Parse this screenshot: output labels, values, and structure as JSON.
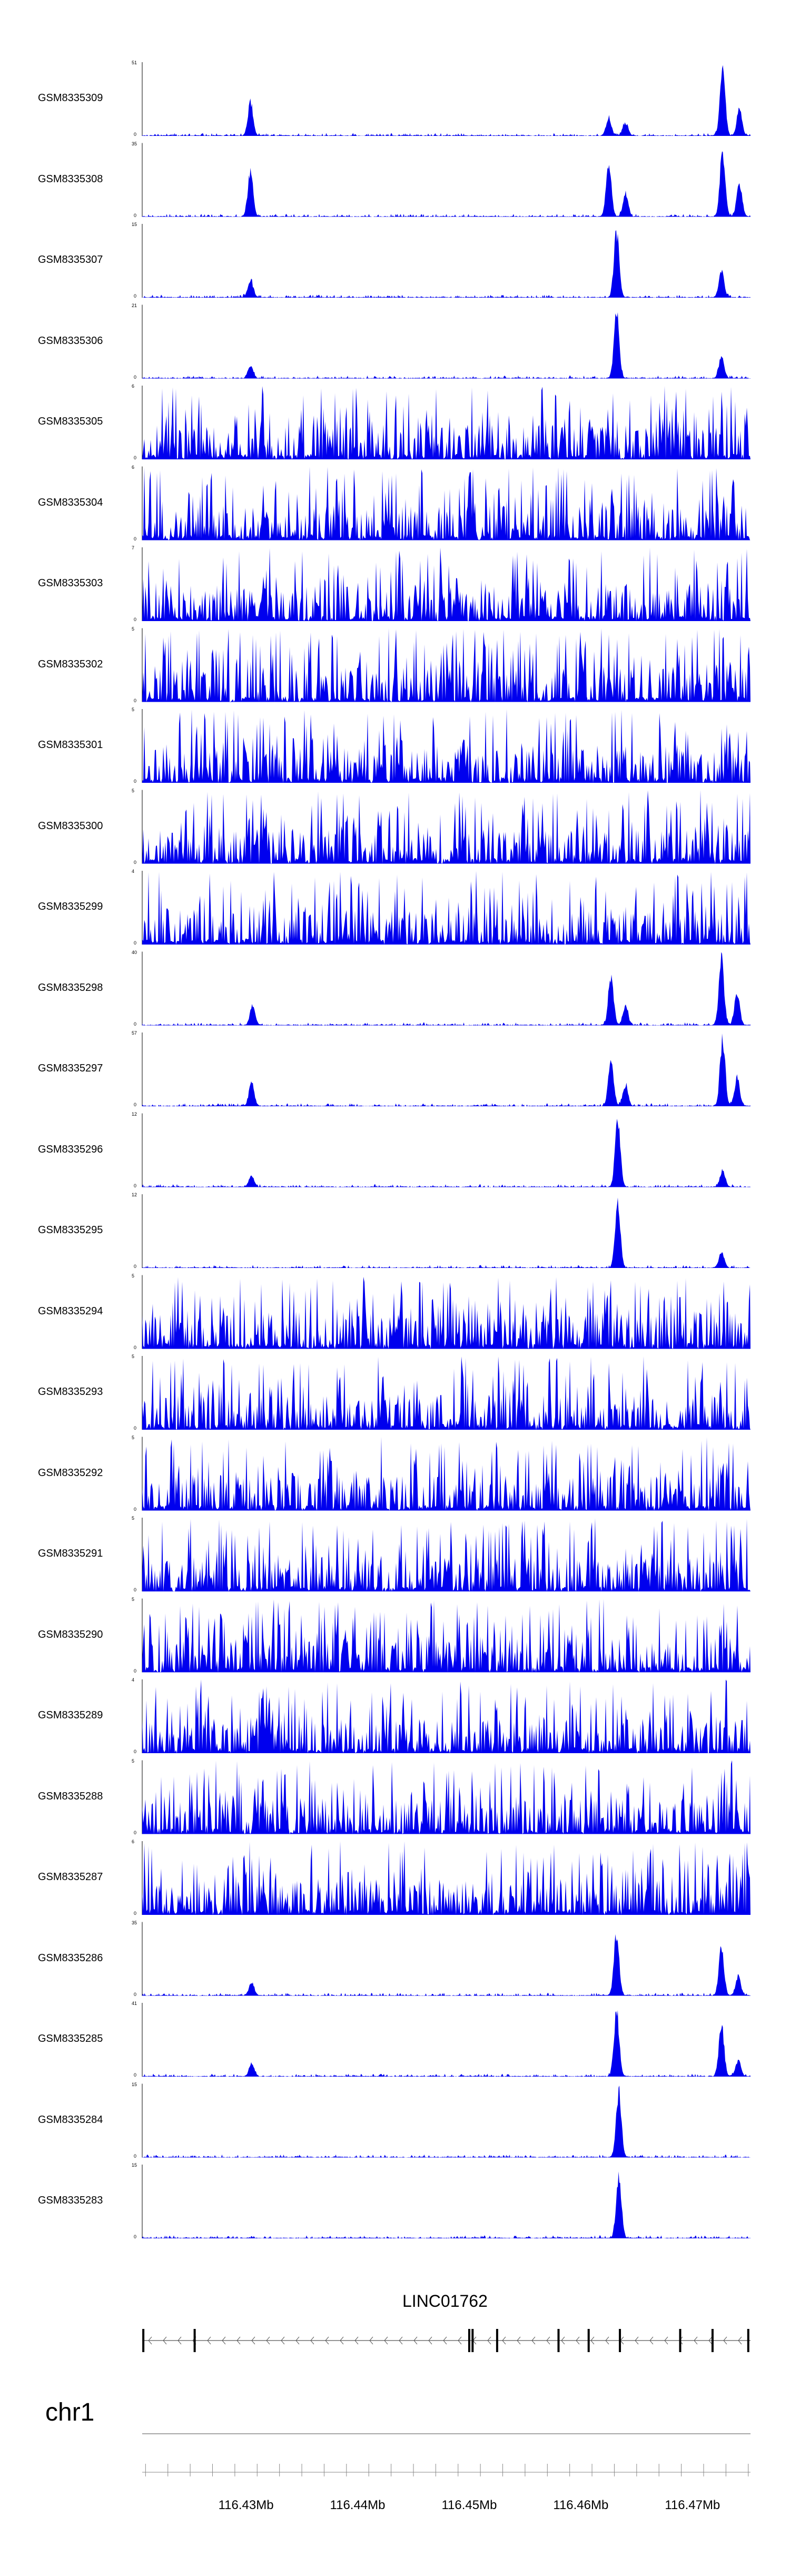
{
  "chart_data": {
    "type": "area",
    "series_color": "#0000ee",
    "x_unit": "Mb",
    "xlim": [
      116.4207,
      116.4752
    ],
    "tracks": [
      {
        "name": "GSM8335309",
        "ymax": 51,
        "ymin": 0,
        "profile": "peaky",
        "peaks": [
          [
            116.4304,
            26
          ],
          [
            116.4625,
            14
          ],
          [
            116.464,
            10
          ],
          [
            116.4727,
            51
          ],
          [
            116.4742,
            20
          ]
        ]
      },
      {
        "name": "GSM8335308",
        "ymax": 35,
        "ymin": 0,
        "profile": "peaky",
        "peaks": [
          [
            116.4304,
            24
          ],
          [
            116.4625,
            28
          ],
          [
            116.464,
            12
          ],
          [
            116.4727,
            35
          ],
          [
            116.4742,
            18
          ]
        ]
      },
      {
        "name": "GSM8335307",
        "ymax": 15,
        "ymin": 0,
        "profile": "peaky",
        "peaks": [
          [
            116.4304,
            4
          ],
          [
            116.4632,
            15
          ],
          [
            116.4726,
            6
          ]
        ]
      },
      {
        "name": "GSM8335306",
        "ymax": 21,
        "ymin": 0,
        "profile": "peaky",
        "peaks": [
          [
            116.4304,
            4
          ],
          [
            116.4632,
            21
          ],
          [
            116.4726,
            7
          ]
        ]
      },
      {
        "name": "GSM8335305",
        "ymax": 6,
        "ymin": 0,
        "profile": "noisy"
      },
      {
        "name": "GSM8335304",
        "ymax": 6,
        "ymin": 0,
        "profile": "noisy"
      },
      {
        "name": "GSM8335303",
        "ymax": 7,
        "ymin": 0,
        "profile": "noisy"
      },
      {
        "name": "GSM8335302",
        "ymax": 5,
        "ymin": 0,
        "profile": "noisy"
      },
      {
        "name": "GSM8335301",
        "ymax": 5,
        "ymin": 0,
        "profile": "noisy"
      },
      {
        "name": "GSM8335300",
        "ymax": 5,
        "ymin": 0,
        "profile": "noisy"
      },
      {
        "name": "GSM8335299",
        "ymax": 4,
        "ymin": 0,
        "profile": "noisy"
      },
      {
        "name": "GSM8335298",
        "ymax": 40,
        "ymin": 0,
        "profile": "peaky",
        "peaks": [
          [
            116.4306,
            12
          ],
          [
            116.4627,
            30
          ],
          [
            116.464,
            12
          ],
          [
            116.4726,
            40
          ],
          [
            116.474,
            20
          ]
        ]
      },
      {
        "name": "GSM8335297",
        "ymax": 57,
        "ymin": 0,
        "profile": "peaky",
        "peaks": [
          [
            116.4305,
            20
          ],
          [
            116.4627,
            40
          ],
          [
            116.464,
            18
          ],
          [
            116.4727,
            57
          ],
          [
            116.474,
            25
          ]
        ]
      },
      {
        "name": "GSM8335296",
        "ymax": 12,
        "ymin": 0,
        "profile": "peaky",
        "peaks": [
          [
            116.4305,
            2
          ],
          [
            116.4633,
            12
          ],
          [
            116.4727,
            3
          ]
        ]
      },
      {
        "name": "GSM8335295",
        "ymax": 12,
        "ymin": 0,
        "profile": "peaky",
        "peaks": [
          [
            116.4633,
            12
          ],
          [
            116.4726,
            3
          ]
        ]
      },
      {
        "name": "GSM8335294",
        "ymax": 5,
        "ymin": 0,
        "profile": "noisy"
      },
      {
        "name": "GSM8335293",
        "ymax": 5,
        "ymin": 0,
        "profile": "noisy"
      },
      {
        "name": "GSM8335292",
        "ymax": 5,
        "ymin": 0,
        "profile": "noisy"
      },
      {
        "name": "GSM8335291",
        "ymax": 5,
        "ymin": 0,
        "profile": "noisy"
      },
      {
        "name": "GSM8335290",
        "ymax": 5,
        "ymin": 0,
        "profile": "noisy"
      },
      {
        "name": "GSM8335289",
        "ymax": 4,
        "ymin": 0,
        "profile": "noisy"
      },
      {
        "name": "GSM8335288",
        "ymax": 5,
        "ymin": 0,
        "profile": "noisy"
      },
      {
        "name": "GSM8335287",
        "ymax": 6,
        "ymin": 0,
        "profile": "noisy"
      },
      {
        "name": "GSM8335286",
        "ymax": 35,
        "ymin": 0,
        "profile": "peaky",
        "peaks": [
          [
            116.4305,
            7
          ],
          [
            116.4632,
            33
          ],
          [
            116.4726,
            26
          ],
          [
            116.4741,
            10
          ]
        ]
      },
      {
        "name": "GSM8335285",
        "ymax": 41,
        "ymin": 0,
        "profile": "peaky",
        "peaks": [
          [
            116.4305,
            8
          ],
          [
            116.4632,
            41
          ],
          [
            116.4726,
            32
          ],
          [
            116.4741,
            10
          ]
        ]
      },
      {
        "name": "GSM8335284",
        "ymax": 15,
        "ymin": 0,
        "profile": "peaky",
        "peaks": [
          [
            116.4634,
            15
          ]
        ]
      },
      {
        "name": "GSM8335283",
        "ymax": 15,
        "ymin": 0,
        "profile": "peaky",
        "peaks": [
          [
            116.4634,
            15
          ]
        ]
      }
    ],
    "gene": {
      "name": "LINC01762",
      "strand": "-",
      "start": 116.4207,
      "end": 116.4752,
      "exons": [
        116.4208,
        116.4254,
        116.45,
        116.4503,
        116.4525,
        116.458,
        116.4607,
        116.4635,
        116.4689,
        116.4718,
        116.475
      ]
    },
    "chromosome": "chr1",
    "x_ticks": [
      "116.43Mb",
      "116.44Mb",
      "116.45Mb",
      "116.46Mb",
      "116.47Mb"
    ],
    "x_tick_values": [
      116.43,
      116.44,
      116.45,
      116.46,
      116.47
    ]
  }
}
